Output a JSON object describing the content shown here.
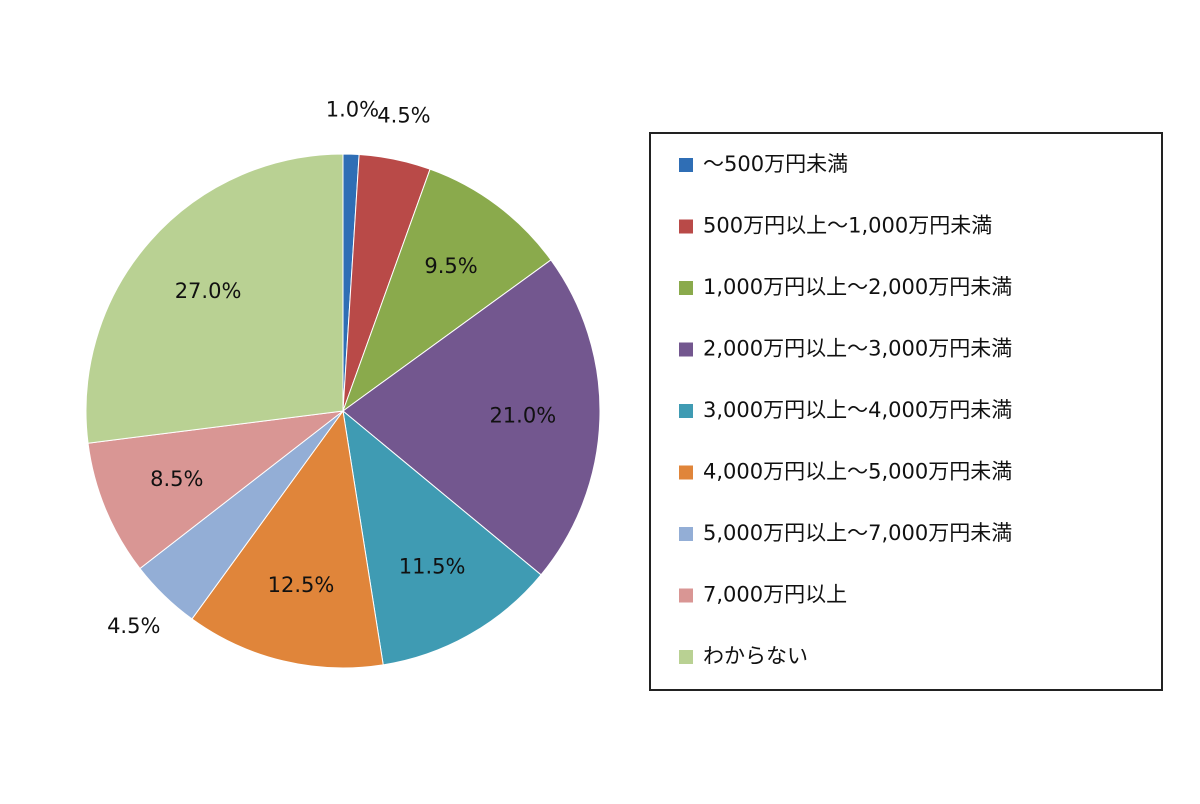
{
  "chart_data": {
    "type": "pie",
    "categories": [
      "～500万円未満",
      "500万円以上～1,000万円未満",
      "1,000万円以上～2,000万円未満",
      "2,000万円以上～3,000万円未満",
      "3,000万円以上～4,000万円未満",
      "4,000万円以上～5,000万円未満",
      "5,000万円以上～7,000万円未満",
      "7,000万円以上",
      "わからない"
    ],
    "values": [
      1.0,
      4.5,
      9.5,
      21.0,
      11.5,
      12.5,
      4.5,
      8.5,
      27.0
    ],
    "value_labels": [
      "1.0%",
      "4.5%",
      "9.5%",
      "21.0%",
      "11.5%",
      "12.5%",
      "4.5%",
      "8.5%",
      "27.0%"
    ],
    "colors": [
      "#2f6eb5",
      "#b94a48",
      "#8aaa4c",
      "#73578f",
      "#3f9bb3",
      "#e0853a",
      "#93aed6",
      "#d99694",
      "#b9d193"
    ],
    "legend": "right"
  }
}
